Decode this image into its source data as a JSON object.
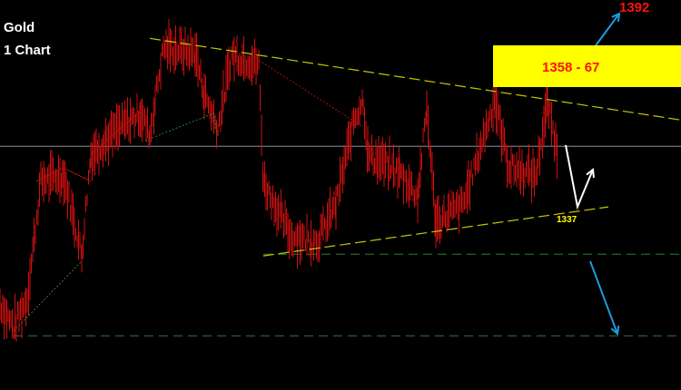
{
  "header": {
    "title": "Gold",
    "subtitle": "1 Chart"
  },
  "chart_data": {
    "type": "line",
    "instrument": "Gold",
    "colors": {
      "price": "#d01010",
      "trendline": "#c8c800",
      "current_price_line": "#8890a0",
      "support_dashed": "#2e7d32",
      "target_box": "#ffff00",
      "target_text": "#ff1010",
      "up_arrow": "#1e9be0",
      "down_arrow": "#1e9be0",
      "scenario_arrow": "#ffffff"
    },
    "price_path": [
      [
        0,
        1321
      ],
      [
        3,
        1317
      ],
      [
        6,
        1322
      ],
      [
        9,
        1342
      ],
      [
        14,
        1343
      ],
      [
        18,
        1329.5
      ],
      [
        20,
        1346.6
      ],
      [
        26,
        1351
      ],
      [
        31,
        1353.6
      ],
      [
        33,
        1350
      ],
      [
        36,
        1365
      ],
      [
        43,
        1364
      ],
      [
        45,
        1357
      ],
      [
        48,
        1351
      ],
      [
        51,
        1363.7
      ],
      [
        57,
        1362
      ],
      [
        58,
        1342
      ],
      [
        64,
        1332.6
      ],
      [
        70,
        1331.8
      ],
      [
        74,
        1338
      ],
      [
        78,
        1352.8
      ],
      [
        80,
        1356
      ],
      [
        81,
        1346.6
      ],
      [
        88,
        1343.5
      ],
      [
        92,
        1339.5
      ],
      [
        94,
        1354.4
      ],
      [
        96,
        1335
      ],
      [
        102,
        1338
      ],
      [
        109,
        1356
      ],
      [
        112,
        1344.5
      ],
      [
        118,
        1343
      ],
      [
        120.6,
        1355.5
      ],
      [
        123,
        1346
      ]
    ],
    "upper_trendline": [
      [
        33,
        1366.5
      ],
      [
        150,
        1352.5
      ]
    ],
    "lower_trendline": [
      [
        58,
        1329.2
      ],
      [
        134,
        1337.6
      ]
    ],
    "horizontal_levels": [
      {
        "price": 1348,
        "style": "solid"
      },
      {
        "price": 1329.5,
        "style": "dashed"
      },
      {
        "price": 1315.5,
        "style": "dashed"
      }
    ],
    "annotations": {
      "target_high": "1392",
      "resistance_zone": "1358 - 67",
      "support": "1337"
    }
  }
}
